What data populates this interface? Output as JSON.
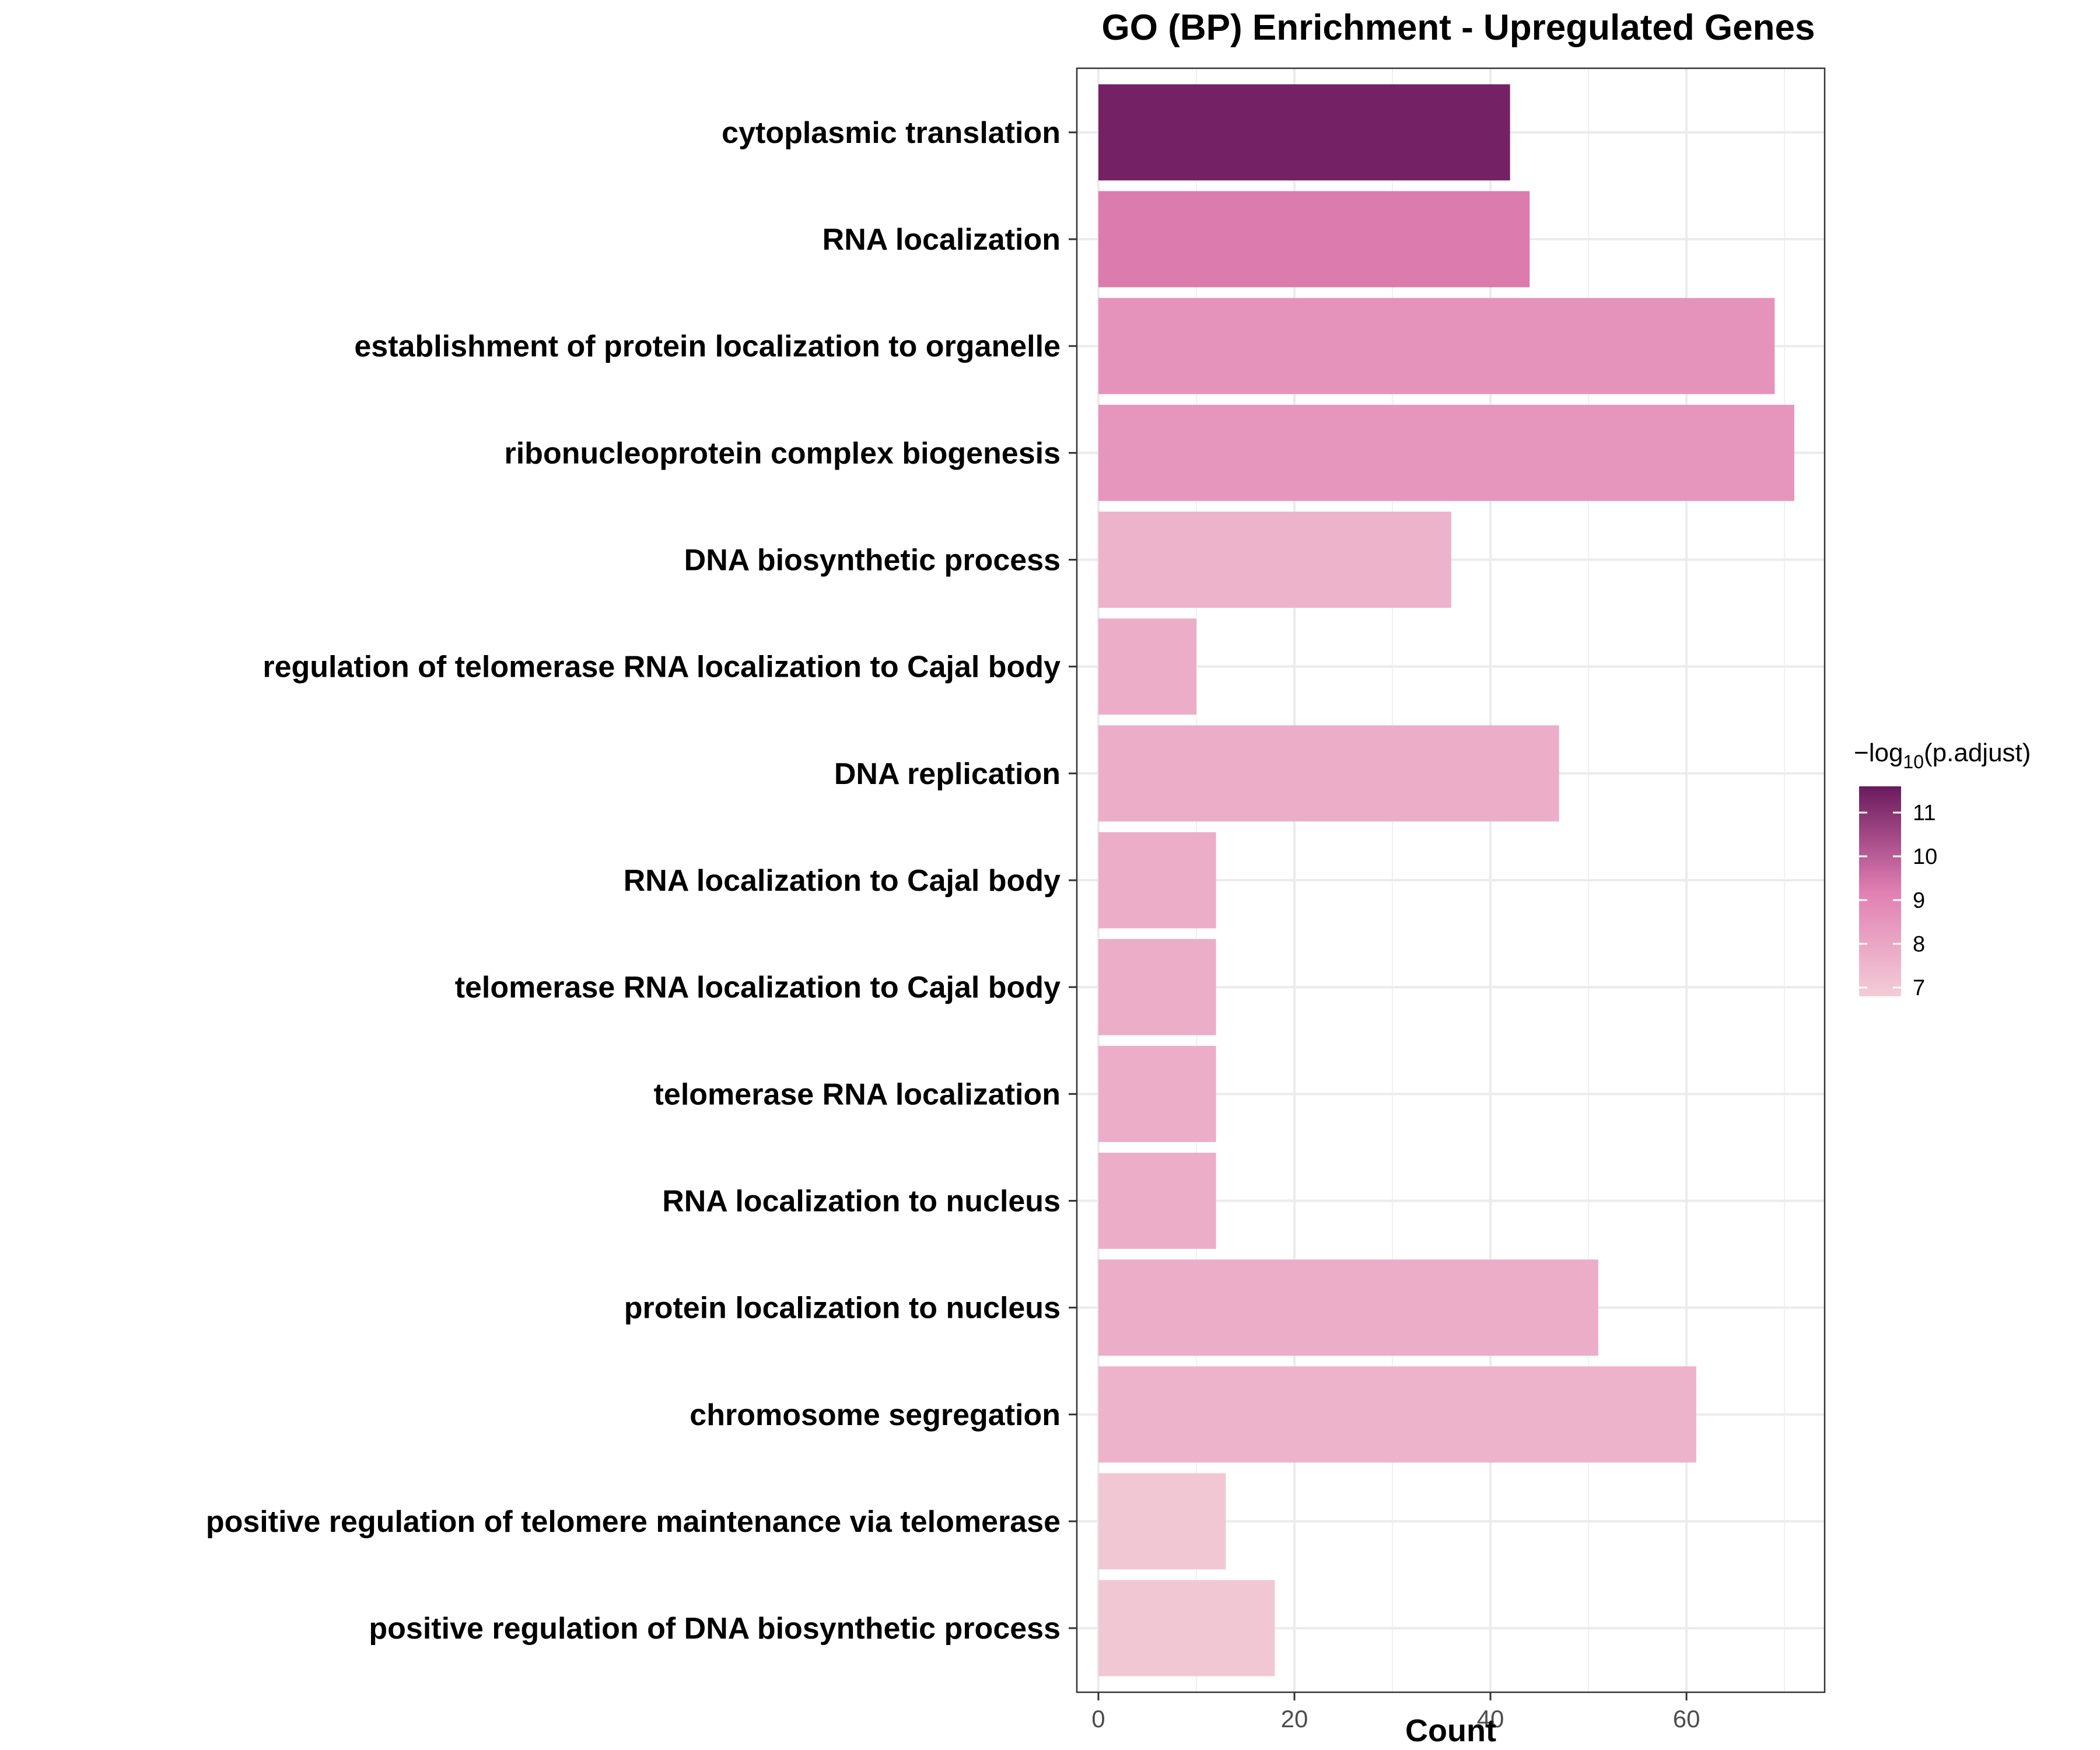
{
  "chart_data": {
    "type": "bar",
    "orientation": "horizontal",
    "title": "GO (BP) Enrichment - Upregulated Genes",
    "xlabel": "Count",
    "ylabel": "",
    "xlim": [
      -2.2,
      74.1
    ],
    "x_ticks": [
      0,
      20,
      40,
      60
    ],
    "grid": true,
    "categories": [
      "cytoplasmic translation",
      "RNA localization",
      "establishment of protein localization to organelle",
      "ribonucleoprotein complex biogenesis",
      "DNA biosynthetic process",
      "regulation of telomerase RNA localization to Cajal body",
      "DNA replication",
      "RNA localization to Cajal body",
      "telomerase RNA localization to Cajal body",
      "telomerase RNA localization",
      "RNA localization to nucleus",
      "protein localization to nucleus",
      "chromosome segregation",
      "positive regulation of telomere maintenance via telomerase",
      "positive regulation of DNA biosynthetic process"
    ],
    "values": [
      42,
      44,
      69,
      71,
      36,
      10,
      47,
      12,
      12,
      12,
      12,
      51,
      61,
      13,
      18
    ],
    "color_values": [
      11.4,
      9.3,
      8.6,
      8.5,
      7.6,
      7.8,
      7.8,
      7.8,
      7.8,
      7.8,
      7.8,
      7.8,
      7.6,
      7.0,
      7.0
    ],
    "legend": {
      "title_prefix": "−log",
      "title_sub": "10",
      "title_suffix": "(p.adjust)",
      "ticks": [
        7,
        8,
        9,
        10,
        11
      ],
      "range": [
        6.8,
        11.6
      ],
      "position": "right"
    },
    "colors": {
      "low": "#f3cdd7",
      "mid": "#e17fb2",
      "high": "#6a1a5e"
    }
  }
}
